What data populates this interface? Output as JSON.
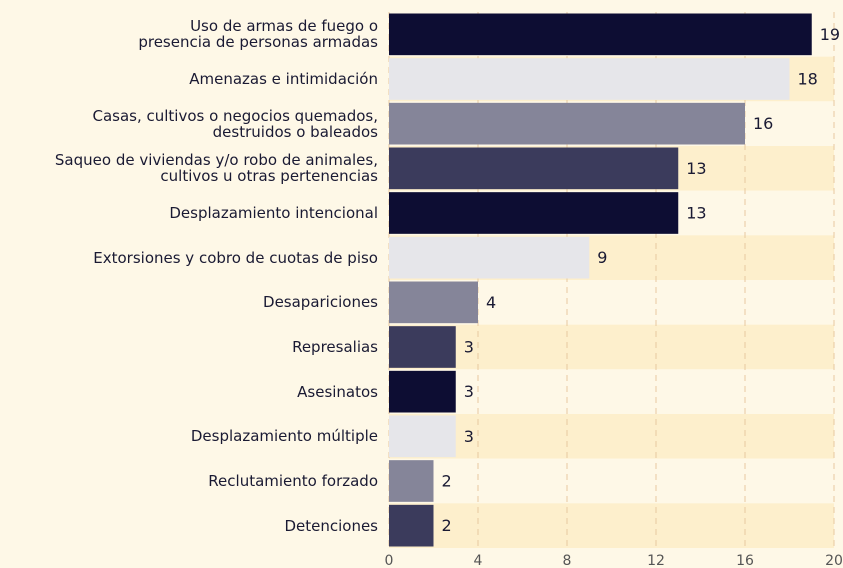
{
  "chart_data": {
    "type": "barh",
    "categories": [
      "Uso de armas de fuego o\npresencia de personas armadas",
      "Amenazas e intimidación",
      "Casas, cultivos o negocios quemados,\ndestruidos o baleados",
      "Saqueo de viviendas y/o robo de animales,\ncultivos u otras pertenencias",
      "Desplazamiento intencional",
      "Extorsiones y cobro de cuotas de piso",
      "Desapariciones",
      "Represalias",
      "Asesinatos",
      "Desplazamiento múltiple",
      "Reclutamiento forzado",
      "Detenciones"
    ],
    "values": [
      19,
      18,
      16,
      13,
      13,
      9,
      4,
      3,
      3,
      3,
      2,
      2
    ],
    "colors": [
      "#0d0d33",
      "#e6e6ea",
      "#858599",
      "#3b3b5c",
      "#0d0d33",
      "#e6e6ea",
      "#858599",
      "#3b3b5c",
      "#0d0d33",
      "#e6e6ea",
      "#858599",
      "#3b3b5c"
    ],
    "xlim": [
      0,
      20
    ],
    "xticks": [
      0,
      4,
      8,
      12,
      16,
      20
    ],
    "grid": true
  }
}
